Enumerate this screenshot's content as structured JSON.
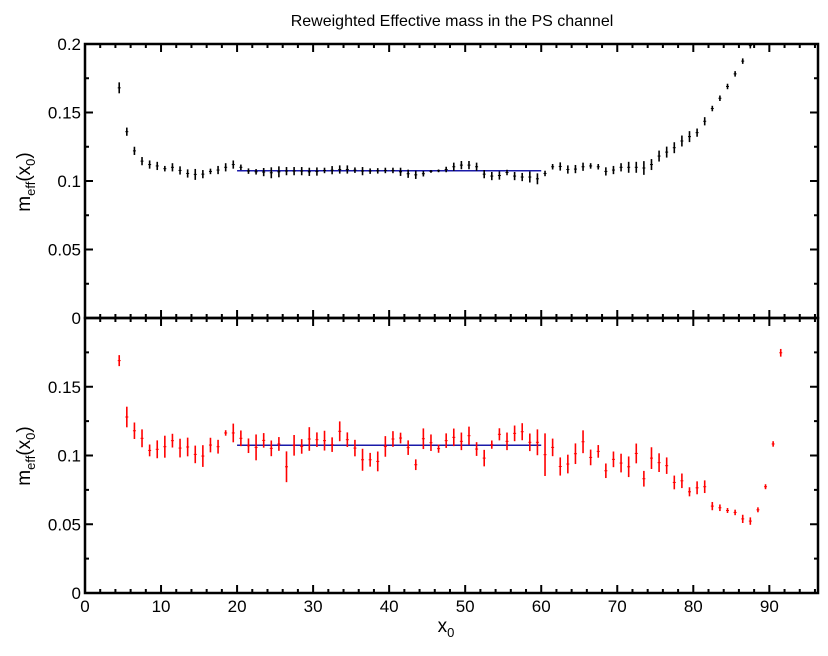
{
  "chart_data": [
    {
      "type": "scatter",
      "panel": "top",
      "title": "Reweighted Effective mass in the PS channel",
      "ylabel": {
        "main": "m",
        "sub": "eff",
        "arg_open": "(x",
        "arg_sub": "0",
        "arg_close": ")"
      },
      "xlim": [
        0,
        96.4
      ],
      "ylim": [
        0,
        0.2
      ],
      "yticks": [
        0,
        0.05,
        0.1,
        0.15,
        0.2
      ],
      "ytick_labels": [
        "0",
        "0.05",
        "0.1",
        "0.15",
        "0.2"
      ],
      "marker_color": "#000000",
      "fit": {
        "x_range": [
          20,
          60
        ],
        "value": 0.1075,
        "color": "#1a1aa8"
      },
      "series": {
        "x": [
          4.5,
          5.5,
          6.5,
          7.5,
          8.5,
          9.5,
          10.5,
          11.5,
          12.5,
          13.5,
          14.5,
          15.5,
          16.5,
          17.5,
          18.5,
          19.5,
          20.5,
          21.5,
          22.5,
          23.5,
          24.5,
          25.5,
          26.5,
          27.5,
          28.5,
          29.5,
          30.5,
          31.5,
          32.5,
          33.5,
          34.5,
          35.5,
          36.5,
          37.5,
          38.5,
          39.5,
          40.5,
          41.5,
          42.5,
          43.5,
          44.5,
          45.5,
          46.5,
          47.5,
          48.5,
          49.5,
          50.5,
          51.5,
          52.5,
          53.5,
          54.5,
          55.5,
          56.5,
          57.5,
          58.5,
          59.5,
          60.5,
          61.5,
          62.5,
          63.5,
          64.5,
          65.5,
          66.5,
          67.5,
          68.5,
          69.5,
          70.5,
          71.5,
          72.5,
          73.5,
          74.5,
          75.5,
          76.5,
          77.5,
          78.5,
          79.5,
          80.5,
          81.5,
          82.5,
          83.5,
          84.5,
          85.5,
          86.5,
          87.5
        ],
        "y": [
          0.168,
          0.136,
          0.122,
          0.1145,
          0.112,
          0.111,
          0.109,
          0.11,
          0.1077,
          0.1055,
          0.1048,
          0.105,
          0.107,
          0.108,
          0.11,
          0.112,
          0.11,
          0.1072,
          0.1067,
          0.1065,
          0.106,
          0.1067,
          0.1072,
          0.1072,
          0.1072,
          0.1067,
          0.1069,
          0.1077,
          0.1079,
          0.1084,
          0.1084,
          0.1079,
          0.1072,
          0.1072,
          0.1074,
          0.1077,
          0.1077,
          0.1067,
          0.1053,
          0.1045,
          0.1053,
          0.107,
          0.1074,
          0.1084,
          0.1104,
          0.1116,
          0.1116,
          0.1104,
          0.105,
          0.1036,
          0.104,
          0.1062,
          0.1036,
          0.1029,
          0.1029,
          0.1016,
          0.1055,
          0.1104,
          0.1106,
          0.1084,
          0.1087,
          0.1104,
          0.111,
          0.1104,
          0.107,
          0.108,
          0.11,
          0.11,
          0.11,
          0.1095,
          0.112,
          0.1182,
          0.1211,
          0.1243,
          0.1292,
          0.1324,
          0.1353,
          0.1436,
          0.1529,
          0.1604,
          0.169,
          0.1782,
          0.1875,
          0.1988
        ],
        "err": [
          0.004,
          0.003,
          0.003,
          0.003,
          0.003,
          0.003,
          0.002,
          0.003,
          0.003,
          0.003,
          0.004,
          0.003,
          0.002,
          0.003,
          0.003,
          0.003,
          0.002,
          0.002,
          0.002,
          0.003,
          0.004,
          0.004,
          0.003,
          0.003,
          0.003,
          0.003,
          0.003,
          0.002,
          0.003,
          0.003,
          0.003,
          0.002,
          0.003,
          0.002,
          0.002,
          0.002,
          0.002,
          0.003,
          0.003,
          0.003,
          0.002,
          0.001,
          0.001,
          0.002,
          0.003,
          0.003,
          0.003,
          0.003,
          0.003,
          0.003,
          0.003,
          0.002,
          0.003,
          0.003,
          0.004,
          0.004,
          0.002,
          0.002,
          0.003,
          0.003,
          0.003,
          0.003,
          0.002,
          0.002,
          0.003,
          0.003,
          0.003,
          0.004,
          0.004,
          0.005,
          0.004,
          0.004,
          0.004,
          0.004,
          0.004,
          0.004,
          0.003,
          0.003,
          0.002,
          0.002,
          0.002,
          0.002,
          0.002,
          0.002
        ]
      }
    },
    {
      "type": "scatter",
      "panel": "bottom",
      "xlabel": {
        "main": "x",
        "sub": "0"
      },
      "ylabel": {
        "main": "m",
        "sub": "eff",
        "arg_open": "(x",
        "arg_sub": "0",
        "arg_close": ")"
      },
      "xlim": [
        0,
        96.4
      ],
      "ylim": [
        0,
        0.2
      ],
      "xticks": [
        0,
        10,
        20,
        30,
        40,
        50,
        60,
        70,
        80,
        90
      ],
      "xtick_labels": [
        "0",
        "10",
        "20",
        "30",
        "40",
        "50",
        "60",
        "70",
        "80",
        "90"
      ],
      "yticks": [
        0,
        0.05,
        0.1,
        0.15
      ],
      "ytick_labels": [
        "0",
        "0.05",
        "0.1",
        "0.15"
      ],
      "marker_color": "#ff0000",
      "fit": {
        "x_range": [
          20,
          60
        ],
        "value": 0.1075,
        "color": "#1a1aa8"
      },
      "series": {
        "x": [
          4.5,
          5.5,
          6.5,
          7.5,
          8.5,
          9.5,
          10.5,
          11.5,
          12.5,
          13.5,
          14.5,
          15.5,
          16.5,
          17.5,
          18.5,
          19.5,
          20.5,
          21.5,
          22.5,
          23.5,
          24.5,
          25.5,
          26.5,
          27.5,
          28.5,
          29.5,
          30.5,
          31.5,
          32.5,
          33.5,
          34.5,
          35.5,
          36.5,
          37.5,
          38.5,
          39.5,
          40.5,
          41.5,
          42.5,
          43.5,
          44.5,
          45.5,
          46.5,
          47.5,
          48.5,
          49.5,
          50.5,
          51.5,
          52.5,
          53.5,
          54.5,
          55.5,
          56.5,
          57.5,
          58.5,
          59.5,
          60.5,
          61.5,
          62.5,
          63.5,
          64.5,
          65.5,
          66.5,
          67.5,
          68.5,
          69.5,
          70.5,
          71.5,
          72.5,
          73.5,
          74.5,
          75.5,
          76.5,
          77.5,
          78.5,
          79.5,
          80.5,
          81.5,
          82.5,
          83.5,
          84.5,
          85.5,
          86.5,
          87.5,
          88.5,
          89.5,
          90.5,
          91.5
        ],
        "y": [
          0.169,
          0.128,
          0.118,
          0.1125,
          0.1037,
          0.1045,
          0.1064,
          0.1108,
          0.1054,
          0.1062,
          0.1008,
          0.0996,
          0.1076,
          0.1064,
          0.1164,
          0.1164,
          0.1125,
          0.1071,
          0.1059,
          0.111,
          0.1052,
          0.1084,
          0.0918,
          0.1074,
          0.1066,
          0.112,
          0.1115,
          0.1108,
          0.1079,
          0.1176,
          0.1115,
          0.1054,
          0.0969,
          0.0969,
          0.0957,
          0.1066,
          0.112,
          0.1127,
          0.1057,
          0.0933,
          0.1122,
          0.1093,
          0.105,
          0.1108,
          0.1132,
          0.1103,
          0.1144,
          0.1047,
          0.0981,
          0.1079,
          0.1154,
          0.1103,
          0.1161,
          0.1173,
          0.1096,
          0.1096,
          0.1006,
          0.1059,
          0.092,
          0.0938,
          0.1013,
          0.11,
          0.0986,
          0.103,
          0.0889,
          0.0972,
          0.0945,
          0.0918,
          0.1015,
          0.0831,
          0.0981,
          0.0948,
          0.0926,
          0.0804,
          0.0816,
          0.0736,
          0.0765,
          0.0773,
          0.0632,
          0.062,
          0.06,
          0.0586,
          0.0539,
          0.0523,
          0.0605,
          0.0773,
          0.1084,
          0.1747
        ],
        "err": [
          0.004,
          0.0075,
          0.006,
          0.0065,
          0.0043,
          0.0065,
          0.008,
          0.005,
          0.0068,
          0.0068,
          0.0064,
          0.0079,
          0.0053,
          0.005,
          0.002,
          0.0068,
          0.0057,
          0.0053,
          0.0094,
          0.0053,
          0.0057,
          0.005,
          0.0112,
          0.0075,
          0.0053,
          0.0086,
          0.0053,
          0.0072,
          0.0053,
          0.0072,
          0.0053,
          0.006,
          0.008,
          0.005,
          0.0072,
          0.0075,
          0.0057,
          0.0039,
          0.0053,
          0.0039,
          0.0075,
          0.006,
          0.003,
          0.0053,
          0.0064,
          0.0064,
          0.0066,
          0.005,
          0.006,
          0.003,
          0.0044,
          0.0064,
          0.0057,
          0.0062,
          0.0064,
          0.0094,
          0.0155,
          0.0064,
          0.0066,
          0.0068,
          0.0075,
          0.0083,
          0.0057,
          0.0046,
          0.0053,
          0.0057,
          0.0068,
          0.0075,
          0.0072,
          0.0057,
          0.0079,
          0.0068,
          0.006,
          0.005,
          0.0053,
          0.0033,
          0.0047,
          0.0046,
          0.003,
          0.0024,
          0.0018,
          0.002,
          0.003,
          0.0027,
          0.0018,
          0.0018,
          0.002,
          0.0028
        ]
      }
    }
  ]
}
